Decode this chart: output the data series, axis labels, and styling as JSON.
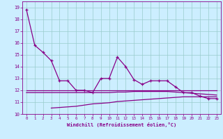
{
  "xlabel": "Windchill (Refroidissement éolien,°C)",
  "x": [
    0,
    1,
    2,
    3,
    4,
    5,
    6,
    7,
    8,
    9,
    10,
    11,
    12,
    13,
    14,
    15,
    16,
    17,
    18,
    19,
    20,
    21,
    22,
    23
  ],
  "y_main": [
    18.8,
    15.8,
    15.2,
    14.5,
    12.8,
    12.8,
    12.0,
    12.0,
    11.8,
    13.0,
    13.0,
    14.8,
    14.0,
    12.9,
    12.5,
    12.8,
    12.8,
    12.8,
    12.3,
    11.8,
    11.8,
    11.5,
    11.3,
    11.3
  ],
  "y_flat_top": [
    12.0,
    12.0,
    12.0,
    12.0,
    12.0,
    12.0,
    12.0,
    12.0,
    12.0,
    12.0,
    12.0,
    12.0,
    12.0,
    12.0,
    12.0,
    12.0,
    12.0,
    12.0,
    12.0,
    12.0,
    12.0,
    12.0,
    12.0,
    12.0
  ],
  "y_flat_mid": [
    11.8,
    11.8,
    11.8,
    11.8,
    11.8,
    11.8,
    11.8,
    11.8,
    11.8,
    11.8,
    11.8,
    11.85,
    11.85,
    11.9,
    11.9,
    11.9,
    11.9,
    11.9,
    11.85,
    11.8,
    11.75,
    11.7,
    11.65,
    11.6
  ],
  "y_lower": [
    null,
    null,
    null,
    10.5,
    10.55,
    10.6,
    10.65,
    10.75,
    10.85,
    10.9,
    10.95,
    11.05,
    11.1,
    11.15,
    11.2,
    11.25,
    11.3,
    11.35,
    11.4,
    11.45,
    11.45,
    11.45,
    11.45,
    11.45
  ],
  "color_main": "#880088",
  "color_smooth": "#880088",
  "color_lower": "#880088",
  "bg_color": "#cceeff",
  "grid_color": "#99cccc",
  "ylim": [
    10,
    19.5
  ],
  "xlim": [
    -0.5,
    23.5
  ]
}
